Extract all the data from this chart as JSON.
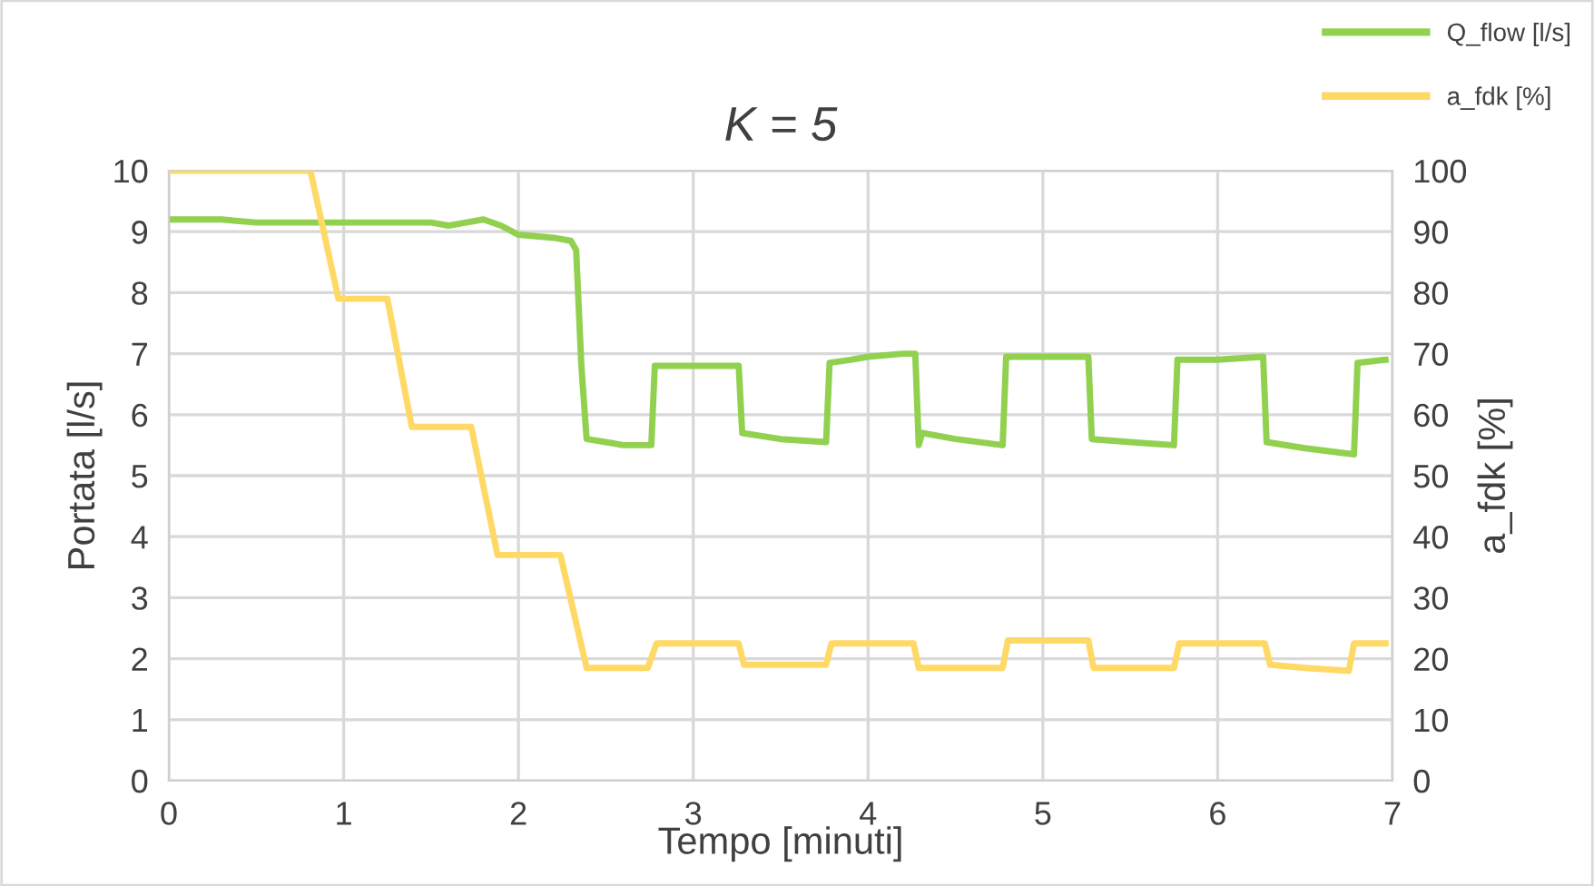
{
  "chart_data": {
    "type": "line",
    "title": "K = 5",
    "xlabel": "Tempo [minuti]",
    "ylabel": "Portata [l/s]",
    "y2label": "a_fdk [%]",
    "xlim": [
      0,
      7
    ],
    "xticks": [
      0,
      1,
      2,
      3,
      4,
      5,
      6,
      7
    ],
    "ylim": [
      0,
      10
    ],
    "yticks": [
      0,
      1,
      2,
      3,
      4,
      5,
      6,
      7,
      8,
      9,
      10
    ],
    "y2lim": [
      0,
      100
    ],
    "y2ticks": [
      0,
      10,
      20,
      30,
      40,
      50,
      60,
      70,
      80,
      90,
      100
    ],
    "grid": true,
    "legend": "top right",
    "marker": "none",
    "line_style": "solid",
    "series": [
      {
        "name": "Q_flow [l/s]",
        "color": "#92d050",
        "axis": "y",
        "x": [
          0,
          0.3,
          0.5,
          1.0,
          1.3,
          1.5,
          1.6,
          1.7,
          1.8,
          1.9,
          2.0,
          2.2,
          2.3,
          2.33,
          2.36,
          2.39,
          2.5,
          2.6,
          2.76,
          2.78,
          3.0,
          3.26,
          3.28,
          3.5,
          3.76,
          3.78,
          3.9,
          4.0,
          4.2,
          4.27,
          4.29,
          4.31,
          4.5,
          4.77,
          4.79,
          5.0,
          5.26,
          5.28,
          5.5,
          5.75,
          5.77,
          6.0,
          6.26,
          6.28,
          6.5,
          6.78,
          6.8,
          6.96
        ],
        "values": [
          9.2,
          9.2,
          9.15,
          9.15,
          9.15,
          9.15,
          9.1,
          9.15,
          9.2,
          9.1,
          8.95,
          8.9,
          8.85,
          8.7,
          6.8,
          5.6,
          5.55,
          5.5,
          5.5,
          6.8,
          6.8,
          6.8,
          5.7,
          5.6,
          5.55,
          6.85,
          6.9,
          6.95,
          7.0,
          7.0,
          5.5,
          5.7,
          5.6,
          5.5,
          6.95,
          6.95,
          6.95,
          5.6,
          5.55,
          5.5,
          6.9,
          6.9,
          6.95,
          5.55,
          5.45,
          5.35,
          6.85,
          6.9
        ]
      },
      {
        "name": "a_fdk [%]",
        "color": "#ffd966",
        "axis": "y2",
        "x": [
          0,
          0.81,
          0.97,
          1.25,
          1.39,
          1.73,
          1.88,
          2.24,
          2.39,
          2.74,
          2.79,
          3.26,
          3.29,
          3.76,
          3.79,
          4.26,
          4.29,
          4.77,
          4.8,
          5.26,
          5.29,
          5.75,
          5.78,
          6.27,
          6.3,
          6.5,
          6.75,
          6.78,
          6.96
        ],
        "values": [
          100,
          100,
          79,
          79,
          58,
          58,
          37,
          37,
          18.5,
          18.5,
          22.5,
          22.5,
          19,
          19,
          22.5,
          22.5,
          18.5,
          18.5,
          23,
          23,
          18.5,
          18.5,
          22.5,
          22.5,
          19,
          18.5,
          18,
          22.5,
          22.5
        ]
      }
    ]
  }
}
